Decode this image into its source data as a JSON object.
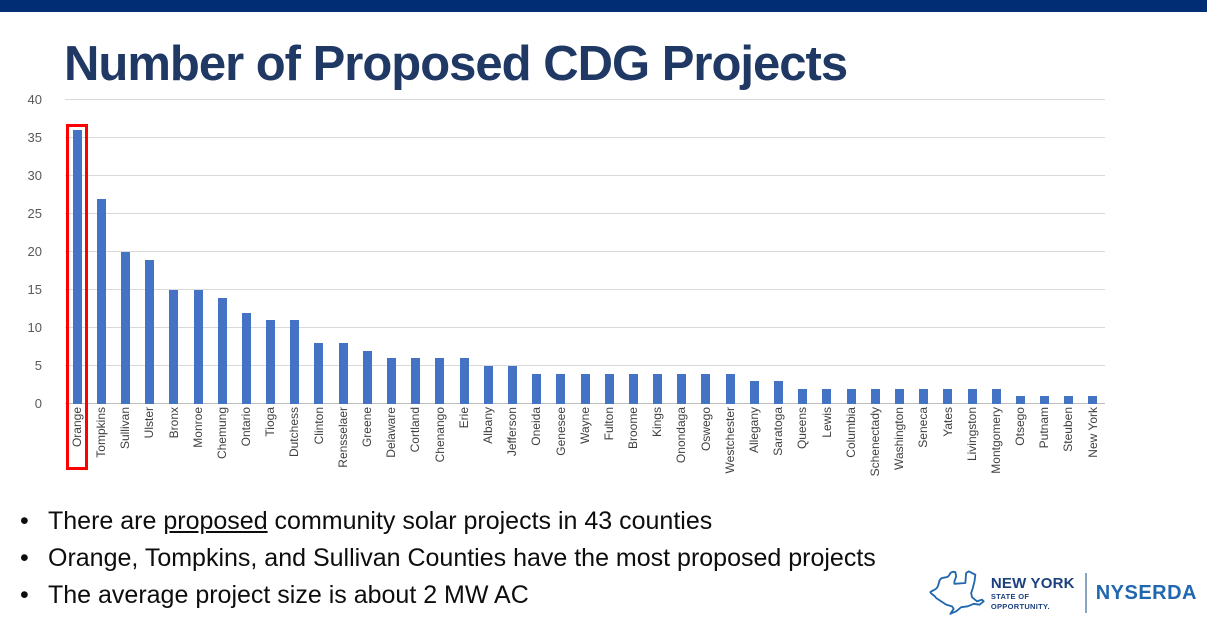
{
  "slide": {
    "title": "Number of Proposed CDG Projects",
    "bullets": [
      {
        "segments": [
          {
            "text": "There are ",
            "underline": false
          },
          {
            "text": "proposed",
            "underline": true
          },
          {
            "text": " community solar projects in 43 counties",
            "underline": false
          }
        ]
      },
      {
        "segments": [
          {
            "text": "Orange, Tompkins, and Sullivan Counties have the most proposed projects",
            "underline": false
          }
        ]
      },
      {
        "segments": [
          {
            "text": "The average project size is about 2 MW AC",
            "underline": false
          }
        ]
      }
    ]
  },
  "chart_data": {
    "type": "bar",
    "title": "",
    "xlabel": "",
    "ylabel": "",
    "ylim": [
      0,
      40
    ],
    "y_ticks": [
      0,
      5,
      10,
      15,
      20,
      25,
      30,
      35,
      40
    ],
    "grid": true,
    "legend": "none",
    "bar_color": "#4472c4",
    "categories": [
      "Orange",
      "Tompkins",
      "Sullivan",
      "Ulster",
      "Bronx",
      "Monroe",
      "Chemung",
      "Ontario",
      "Tioga",
      "Dutchess",
      "Clinton",
      "Rensselaer",
      "Greene",
      "Delaware",
      "Cortland",
      "Chenango",
      "Erie",
      "Albany",
      "Jefferson",
      "Oneida",
      "Genesee",
      "Wayne",
      "Fulton",
      "Broome",
      "Kings",
      "Onondaga",
      "Oswego",
      "Westchester",
      "Allegany",
      "Saratoga",
      "Queens",
      "Lewis",
      "Columbia",
      "Schenectady",
      "Washington",
      "Seneca",
      "Yates",
      "Livingston",
      "Montgomery",
      "Otsego",
      "Putnam",
      "Steuben",
      "New York"
    ],
    "values": [
      36,
      27,
      20,
      19,
      15,
      15,
      14,
      12,
      11,
      11,
      8,
      8,
      7,
      6,
      6,
      6,
      6,
      5,
      5,
      4,
      4,
      4,
      4,
      4,
      4,
      4,
      4,
      4,
      3,
      3,
      2,
      2,
      2,
      2,
      2,
      2,
      2,
      2,
      2,
      1,
      1,
      1,
      1
    ],
    "highlight": {
      "category": "Orange",
      "style": "red-outline",
      "color": "#ff0000"
    }
  },
  "logo": {
    "state_name": "NEW YORK",
    "tagline_line1": "STATE OF",
    "tagline_line2": "OPPORTUNITY.",
    "org": "NYSERDA"
  },
  "colors": {
    "top_bar": "#002d73",
    "title": "#1f3864",
    "bar": "#4472c4",
    "highlight": "#ff0000",
    "logo_dark_blue": "#1b4080",
    "logo_blue": "#2167ae"
  }
}
